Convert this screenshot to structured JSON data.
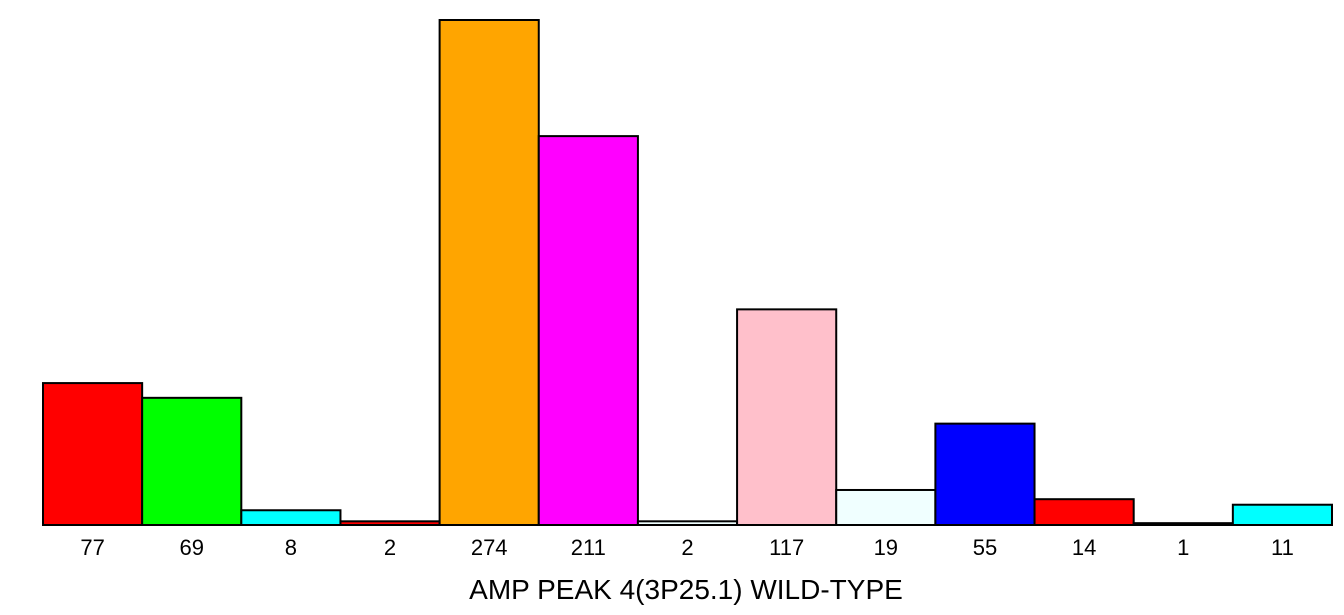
{
  "chart_data": {
    "type": "bar",
    "categories": [
      "77",
      "69",
      "8",
      "2",
      "274",
      "211",
      "2",
      "117",
      "19",
      "55",
      "14",
      "1",
      "11"
    ],
    "values": [
      77,
      69,
      8,
      2,
      274,
      211,
      2,
      117,
      19,
      55,
      14,
      1,
      11
    ],
    "colors": [
      "#ff0000",
      "#00ff00",
      "#00ffff",
      "#ff0000",
      "#ffa500",
      "#ff00ff",
      "#f0ffff",
      "#ffc0cb",
      "#f0ffff",
      "#0000ff",
      "#ff0000",
      "#f0ffff",
      "#00ffff"
    ],
    "xlabel": "AMP PEAK  4(3P25.1) WILD-TYPE",
    "ylim": [
      0,
      274
    ],
    "grid": false
  }
}
